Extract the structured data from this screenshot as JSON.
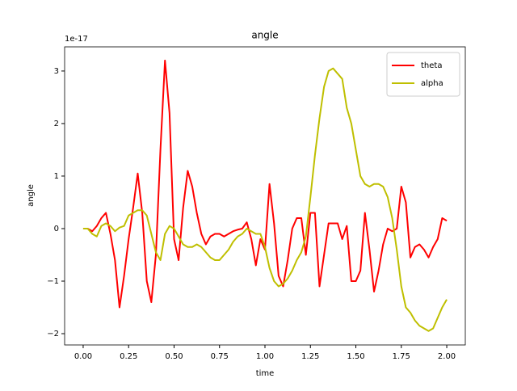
{
  "chart_data": {
    "type": "line",
    "title": "angle",
    "xlabel": "time",
    "ylabel": "angle",
    "offset_label": "1e-17",
    "x": [
      0,
      0.025,
      0.05,
      0.075,
      0.1,
      0.125,
      0.15,
      0.175,
      0.2,
      0.225,
      0.25,
      0.275,
      0.3,
      0.325,
      0.35,
      0.375,
      0.4,
      0.425,
      0.45,
      0.475,
      0.5,
      0.525,
      0.55,
      0.575,
      0.6,
      0.625,
      0.65,
      0.675,
      0.7,
      0.725,
      0.75,
      0.775,
      0.8,
      0.825,
      0.85,
      0.875,
      0.9,
      0.925,
      0.95,
      0.975,
      1,
      1.025,
      1.05,
      1.075,
      1.1,
      1.125,
      1.15,
      1.175,
      1.2,
      1.225,
      1.25,
      1.275,
      1.3,
      1.325,
      1.35,
      1.375,
      1.4,
      1.425,
      1.45,
      1.475,
      1.5,
      1.525,
      1.55,
      1.575,
      1.6,
      1.625,
      1.65,
      1.675,
      1.7,
      1.725,
      1.75,
      1.775,
      1.8,
      1.825,
      1.85,
      1.875,
      1.9,
      1.925,
      1.95,
      1.975,
      2
    ],
    "series": [
      {
        "name": "theta",
        "color": "#ff0000",
        "values": [
          0,
          0,
          -0.05,
          0.05,
          0.2,
          0.3,
          -0.1,
          -0.6,
          -1.5,
          -0.9,
          -0.2,
          0.4,
          1.05,
          0.3,
          -1.0,
          -1.4,
          -0.5,
          1.5,
          3.2,
          2.2,
          -0.2,
          -0.6,
          0.4,
          1.1,
          0.8,
          0.3,
          -0.1,
          -0.3,
          -0.15,
          -0.1,
          -0.1,
          -0.15,
          -0.1,
          -0.05,
          -0.02,
          0,
          0.12,
          -0.2,
          -0.7,
          -0.2,
          -0.4,
          0.85,
          0.1,
          -0.9,
          -1.1,
          -0.6,
          0,
          0.2,
          0.2,
          -0.5,
          0.3,
          0.3,
          -1.1,
          -0.5,
          0.1,
          0.1,
          0.1,
          -0.2,
          0.05,
          -1.0,
          -1.0,
          -0.8,
          0.3,
          -0.4,
          -1.2,
          -0.8,
          -0.3,
          0,
          -0.05,
          0,
          0.8,
          0.5,
          -0.55,
          -0.35,
          -0.3,
          -0.4,
          -0.55,
          -0.35,
          -0.2,
          0.2,
          0.15
        ]
      },
      {
        "name": "alpha",
        "color": "#bfbf00",
        "values": [
          0,
          0,
          -0.1,
          -0.15,
          0.05,
          0.1,
          0.05,
          -0.05,
          0.02,
          0.05,
          0.25,
          0.3,
          0.35,
          0.35,
          0.25,
          -0.1,
          -0.45,
          -0.6,
          -0.1,
          0.05,
          0,
          -0.15,
          -0.3,
          -0.35,
          -0.35,
          -0.3,
          -0.35,
          -0.45,
          -0.55,
          -0.6,
          -0.6,
          -0.5,
          -0.4,
          -0.25,
          -0.15,
          -0.1,
          0,
          -0.05,
          -0.1,
          -0.1,
          -0.35,
          -0.75,
          -1.0,
          -1.1,
          -1.05,
          -0.95,
          -0.8,
          -0.6,
          -0.45,
          -0.15,
          0.6,
          1.4,
          2.1,
          2.7,
          3.0,
          3.05,
          2.95,
          2.85,
          2.3,
          2.0,
          1.5,
          1.0,
          0.85,
          0.8,
          0.85,
          0.85,
          0.8,
          0.6,
          0.2,
          -0.4,
          -1.1,
          -1.5,
          -1.6,
          -1.75,
          -1.85,
          -1.9,
          -1.95,
          -1.9,
          -1.7,
          -1.5,
          -1.35
        ]
      }
    ],
    "xlim": [
      -0.102,
      2.102
    ],
    "ylim": [
      -2.215,
      3.46
    ],
    "xticks": [
      {
        "value": 0,
        "label": "0.00"
      },
      {
        "value": 0.25,
        "label": "0.25"
      },
      {
        "value": 0.5,
        "label": "0.50"
      },
      {
        "value": 0.75,
        "label": "0.75"
      },
      {
        "value": 1,
        "label": "1.00"
      },
      {
        "value": 1.25,
        "label": "1.25"
      },
      {
        "value": 1.5,
        "label": "1.50"
      },
      {
        "value": 1.75,
        "label": "1.75"
      },
      {
        "value": 2,
        "label": "2.00"
      }
    ],
    "yticks": [
      {
        "value": -2,
        "label": "−2"
      },
      {
        "value": -1,
        "label": "−1"
      },
      0,
      1,
      2,
      3
    ],
    "legend": "upper right",
    "grid": false
  }
}
